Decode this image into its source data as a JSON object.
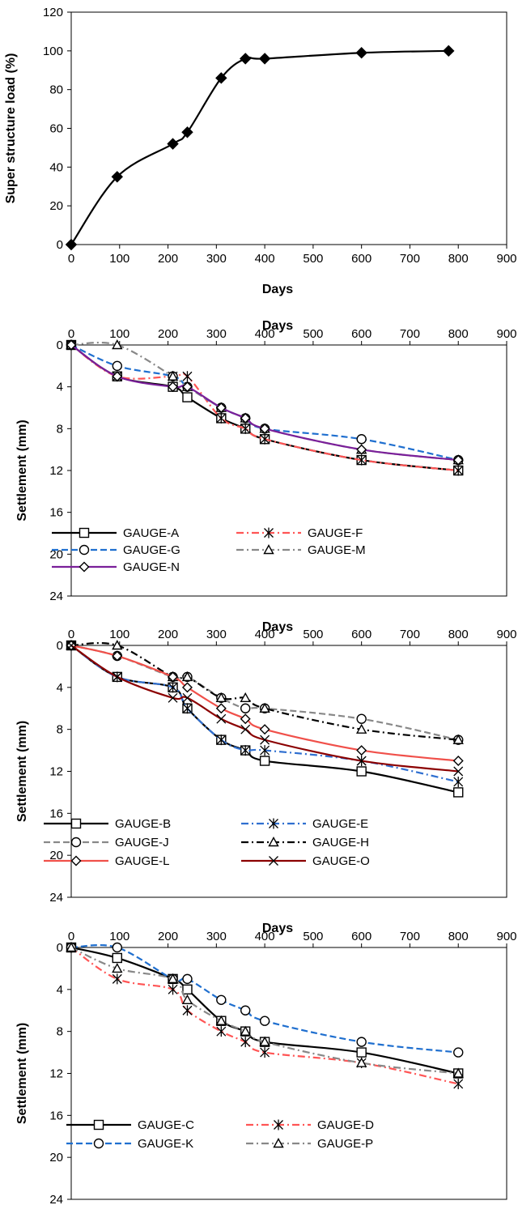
{
  "chart_data": [
    {
      "type": "line",
      "xlabel": "Days",
      "ylabel": "Super structure load (%)",
      "xlim": [
        0,
        900
      ],
      "ylim": [
        0,
        120
      ],
      "x_ticks": [
        "0",
        "100",
        "200",
        "300",
        "400",
        "500",
        "600",
        "700",
        "800",
        "900"
      ],
      "y_ticks": [
        "0",
        "20",
        "40",
        "60",
        "80",
        "100",
        "120"
      ],
      "x_axis_position": "bottom",
      "y_inverted": false,
      "grid": false,
      "series": [
        {
          "x": [
            0,
            95,
            210,
            240,
            310,
            360,
            400,
            600,
            780
          ],
          "y": [
            0,
            35,
            52,
            58,
            86,
            96,
            96,
            99,
            100
          ],
          "color": "#000000",
          "marker": "filled-diamond",
          "dash": "solid"
        }
      ]
    },
    {
      "type": "line",
      "xlabel": "Days",
      "ylabel": "Settlement (mm)",
      "xlim": [
        0,
        900
      ],
      "ylim": [
        0,
        24
      ],
      "x_ticks": [
        "0",
        "100",
        "200",
        "300",
        "400",
        "500",
        "600",
        "700",
        "800",
        "900"
      ],
      "y_ticks": [
        "0",
        "4",
        "8",
        "12",
        "16",
        "20",
        "24"
      ],
      "x_axis_position": "top",
      "y_inverted": true,
      "grid": false,
      "legend_position": "lower-center",
      "series": [
        {
          "name": "GAUGE-A",
          "x": [
            0,
            95,
            210,
            240,
            310,
            360,
            400,
            600,
            800
          ],
          "y": [
            0,
            3,
            4,
            5,
            7,
            8,
            9,
            11,
            12
          ],
          "color": "#000000",
          "marker": "square",
          "dash": "solid"
        },
        {
          "name": "GAUGE-F",
          "x": [
            0,
            95,
            210,
            240,
            310,
            360,
            400,
            600,
            800
          ],
          "y": [
            0,
            3,
            3,
            3,
            7,
            8,
            9,
            11,
            12
          ],
          "color": "#ff5555",
          "marker": "asterisk",
          "dash": "dashdot"
        },
        {
          "name": "GAUGE-G",
          "x": [
            0,
            95,
            210,
            240,
            310,
            360,
            400,
            600,
            800
          ],
          "y": [
            0,
            2,
            3,
            4,
            6,
            7,
            8,
            9,
            11
          ],
          "color": "#1f6fcf",
          "marker": "circle",
          "dash": "dashed"
        },
        {
          "name": "GAUGE-M",
          "x": [
            0,
            95,
            210,
            240,
            310,
            360,
            400,
            600,
            800
          ],
          "y": [
            0,
            0,
            3,
            4,
            6,
            7,
            8,
            10,
            11
          ],
          "color": "#888888",
          "marker": "triangle",
          "dash": "dashdot"
        },
        {
          "name": "GAUGE-N",
          "x": [
            0,
            95,
            210,
            240,
            310,
            360,
            400,
            600,
            800
          ],
          "y": [
            0,
            3,
            4,
            4,
            6,
            7,
            8,
            10,
            11
          ],
          "color": "#7a1f99",
          "marker": "diamond",
          "dash": "solid"
        }
      ]
    },
    {
      "type": "line",
      "xlabel": "Days",
      "ylabel": "Settlement (mm)",
      "xlim": [
        0,
        900
      ],
      "ylim": [
        0,
        24
      ],
      "x_ticks": [
        "0",
        "100",
        "200",
        "300",
        "400",
        "500",
        "600",
        "700",
        "800",
        "900"
      ],
      "y_ticks": [
        "0",
        "4",
        "8",
        "12",
        "16",
        "20",
        "24"
      ],
      "x_axis_position": "top",
      "y_inverted": true,
      "grid": false,
      "legend_position": "lower-center",
      "series": [
        {
          "name": "GAUGE-B",
          "x": [
            0,
            95,
            210,
            240,
            310,
            360,
            400,
            600,
            800
          ],
          "y": [
            0,
            3,
            4,
            6,
            9,
            10,
            11,
            12,
            14
          ],
          "color": "#000000",
          "marker": "square",
          "dash": "solid"
        },
        {
          "name": "GAUGE-E",
          "x": [
            0,
            95,
            210,
            240,
            310,
            360,
            400,
            600,
            800
          ],
          "y": [
            0,
            3,
            4,
            6,
            9,
            10,
            10,
            11,
            13
          ],
          "color": "#2f6fd0",
          "marker": "asterisk",
          "dash": "dashdot"
        },
        {
          "name": "GAUGE-J",
          "x": [
            0,
            95,
            210,
            240,
            310,
            360,
            400,
            600,
            800
          ],
          "y": [
            0,
            1,
            3,
            3,
            5,
            6,
            6,
            7,
            9
          ],
          "color": "#888888",
          "marker": "circle",
          "dash": "dashed"
        },
        {
          "name": "GAUGE-H",
          "x": [
            0,
            95,
            210,
            240,
            310,
            360,
            400,
            600,
            800
          ],
          "y": [
            0,
            0,
            3,
            3,
            5,
            5,
            6,
            8,
            9
          ],
          "color": "#000000",
          "marker": "triangle",
          "dash": "dashdot"
        },
        {
          "name": "GAUGE-L",
          "x": [
            0,
            95,
            210,
            240,
            310,
            360,
            400,
            600,
            800
          ],
          "y": [
            0,
            1,
            3,
            4,
            6,
            7,
            8,
            10,
            11
          ],
          "color": "#f0504a",
          "marker": "diamond",
          "dash": "solid"
        },
        {
          "name": "GAUGE-O",
          "x": [
            0,
            95,
            210,
            240,
            310,
            360,
            400,
            600,
            800
          ],
          "y": [
            0,
            3,
            5,
            5,
            7,
            8,
            9,
            11,
            12
          ],
          "color": "#8b0000",
          "marker": "cross",
          "dash": "solid"
        }
      ]
    },
    {
      "type": "line",
      "xlabel": "Days",
      "ylabel": "Settlement (mm)",
      "xlim": [
        0,
        900
      ],
      "ylim": [
        0,
        24
      ],
      "x_ticks": [
        "0",
        "100",
        "200",
        "300",
        "400",
        "500",
        "600",
        "700",
        "800",
        "900"
      ],
      "y_ticks": [
        "0",
        "4",
        "8",
        "12",
        "16",
        "20",
        "24"
      ],
      "x_axis_position": "top",
      "y_inverted": true,
      "grid": false,
      "legend_position": "lower-center",
      "series": [
        {
          "name": "GAUGE-C",
          "x": [
            0,
            95,
            210,
            240,
            310,
            360,
            400,
            600,
            800
          ],
          "y": [
            0,
            1,
            3,
            4,
            7,
            8,
            9,
            10,
            12
          ],
          "color": "#000000",
          "marker": "square",
          "dash": "solid"
        },
        {
          "name": "GAUGE-D",
          "x": [
            0,
            95,
            210,
            240,
            310,
            360,
            400,
            600,
            800
          ],
          "y": [
            0,
            3,
            4,
            6,
            8,
            9,
            10,
            11,
            13
          ],
          "color": "#ff5555",
          "marker": "asterisk",
          "dash": "dashdot"
        },
        {
          "name": "GAUGE-K",
          "x": [
            0,
            95,
            210,
            240,
            310,
            360,
            400,
            600,
            800
          ],
          "y": [
            0,
            0,
            3,
            3,
            5,
            6,
            7,
            9,
            10
          ],
          "color": "#1f6fcf",
          "marker": "circle",
          "dash": "dashed"
        },
        {
          "name": "GAUGE-P",
          "x": [
            0,
            95,
            210,
            240,
            310,
            360,
            400,
            600,
            800
          ],
          "y": [
            0,
            2,
            3,
            5,
            7,
            8,
            9,
            11,
            12
          ],
          "color": "#888888",
          "marker": "triangle",
          "dash": "dashdot"
        }
      ]
    }
  ]
}
